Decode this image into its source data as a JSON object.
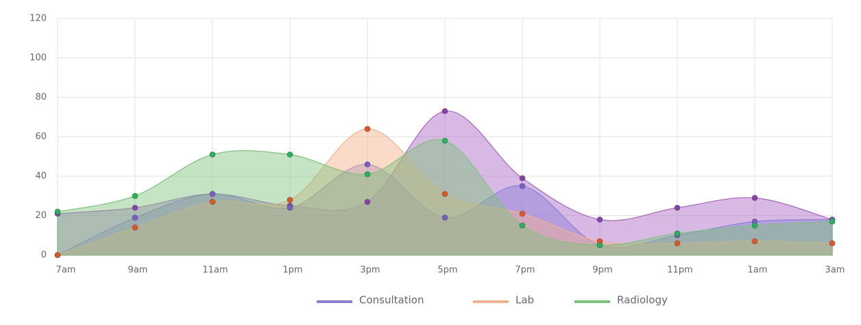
{
  "chart_data": {
    "type": "area",
    "categories": [
      "7am",
      "9am",
      "11am",
      "1pm",
      "3pm",
      "5pm",
      "7pm",
      "9pm",
      "11pm",
      "1am",
      "3am"
    ],
    "series": [
      {
        "name": "Consultation",
        "color": "#8a7fd6",
        "point_color": "#7a5cd0",
        "values": [
          0,
          19,
          31,
          24,
          46,
          19,
          35,
          5,
          10,
          17,
          18
        ]
      },
      {
        "name": "Lab",
        "color": "#f4b08a",
        "point_color": "#e8541e",
        "values": [
          0,
          14,
          27,
          28,
          64,
          31,
          21,
          7,
          6,
          7,
          6
        ]
      },
      {
        "name": "Radiology",
        "color": "#7cc47a",
        "point_color": "#1db954",
        "values": [
          22,
          30,
          51,
          51,
          41,
          58,
          15,
          5,
          11,
          15,
          17
        ]
      },
      {
        "color": "#a964c4",
        "point_color": "#8b3fb0",
        "values": [
          21,
          24,
          31,
          25,
          27,
          73,
          39,
          18,
          24,
          29,
          18
        ]
      }
    ],
    "ylim": [
      0,
      120
    ],
    "yticks": [
      0,
      20,
      40,
      60,
      80,
      100,
      120
    ],
    "grid": true,
    "legend": "bottom"
  }
}
